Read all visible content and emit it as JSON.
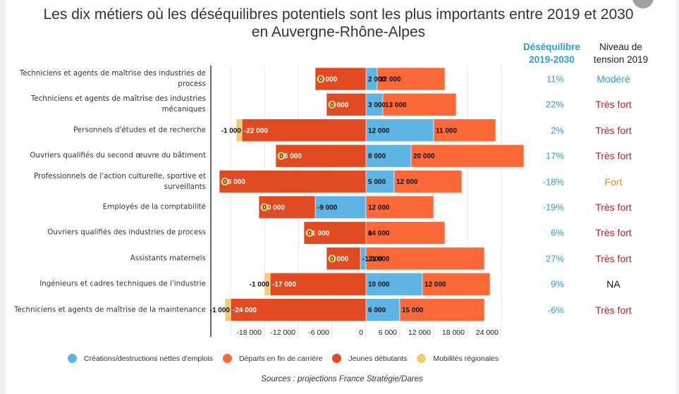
{
  "page": {
    "colors": {
      "creations": "#5eb4e3",
      "departs": "#fd6838",
      "jeunes": "#e24a22",
      "mobilites": "#f0ce70",
      "modere": "#2a9fd8",
      "tres_fort": "#cc1b1b",
      "fort": "#f08a1a",
      "na": "#111111"
    }
  },
  "columns": {
    "desequilibre_header": "Déséquilibre 2019-2030",
    "tension_header": "Niveau de tension  2019"
  },
  "chart_data": {
    "type": "bar",
    "orientation": "horizontal",
    "stacked": true,
    "title": "Les dix métiers où les déséquilibres potentiels sont les plus importants entre 2019 et 2030 en Auvergne-Rhône-Alpes",
    "xlabel": "",
    "ylabel": "",
    "xlim": [
      -24000,
      24000
    ],
    "xticks": [
      -18000,
      -12000,
      -6000,
      0,
      6000,
      12000,
      18000,
      24000
    ],
    "xtick_labels": [
      "-18 000",
      "-12 000",
      "-6 000",
      "0",
      "6 000",
      "12 000",
      "18 000",
      "24 000"
    ],
    "grid": true,
    "legend_position": "bottom",
    "categories": [
      "Techniciens et agents de maîtrise des industries de process",
      "Techniciens et agents de maîtrise des industries mécaniques",
      "Personnels d'études et de recherche",
      "Ouvriers qualifiés du second œuvre du bâtiment",
      "Professionnels de l'action culturelle, sportive et surveillants",
      "Employés de la comptabilité",
      "Ouvriers qualifiés des industries de process",
      "Assistants maternels",
      "Ingénieurs et cadres techniques de l'industrie",
      "Techniciens et agents de maîtrise de la maintenance"
    ],
    "series": [
      {
        "name": "Créations/destructions nettes d'emplois",
        "key": "creations",
        "values": [
          2000,
          3000,
          12000,
          8000,
          5000,
          -9000,
          0,
          -1000,
          10000,
          6000
        ],
        "labels": [
          "2 000",
          "3 000",
          "12 000",
          "8 000",
          "5 000",
          "-9 000",
          "0",
          "-1 000",
          "10 000",
          "6 000"
        ]
      },
      {
        "name": "Départs en fin de carrière",
        "key": "departs",
        "values": [
          12000,
          13000,
          11000,
          20000,
          12000,
          12000,
          14000,
          21000,
          12000,
          15000
        ],
        "labels": [
          "12 000",
          "13 000",
          "11 000",
          "20 000",
          "12 000",
          "12 000",
          "14 000",
          "21 000",
          "12 000",
          "15 000"
        ]
      },
      {
        "name": "Jeunes débutants",
        "key": "jeunes",
        "values": [
          -9000,
          -7000,
          -22000,
          -16000,
          -26000,
          -10000,
          -11000,
          -6000,
          -17000,
          -24000
        ],
        "labels": [
          "-9 000",
          "-7 000",
          "-22 000",
          "-16 000",
          "-26 000",
          "-10 000",
          "-11 000",
          "-6 000",
          "-17 000",
          "-24 000"
        ]
      },
      {
        "name": "Mobilités régionales",
        "key": "mobilites",
        "values": [
          0,
          0,
          -1000,
          0,
          0,
          0,
          0,
          0,
          -1000,
          -1000
        ],
        "labels": [
          "0",
          "0",
          "-1 000",
          "0",
          "0",
          "0",
          "0",
          "0",
          "-1 000",
          "-1 000"
        ]
      }
    ],
    "desequilibre": [
      "11%",
      "22%",
      "2%",
      "17%",
      "-18%",
      "-19%",
      "6%",
      "27%",
      "9%",
      "-6%"
    ],
    "tension": [
      {
        "label": "Modéré",
        "level": "modere"
      },
      {
        "label": "Très fort",
        "level": "tres_fort"
      },
      {
        "label": "Très fort",
        "level": "tres_fort"
      },
      {
        "label": "Très fort",
        "level": "tres_fort"
      },
      {
        "label": "Fort",
        "level": "fort"
      },
      {
        "label": "Très fort",
        "level": "tres_fort"
      },
      {
        "label": "Très fort",
        "level": "tres_fort"
      },
      {
        "label": "Très fort",
        "level": "tres_fort"
      },
      {
        "label": "NA",
        "level": "na"
      },
      {
        "label": "Très fort",
        "level": "tres_fort"
      }
    ],
    "legend": [
      {
        "label": "Créations/destructions nettes d'emplois",
        "key": "creations"
      },
      {
        "label": "Départs en fin de carrière",
        "key": "departs"
      },
      {
        "label": "Jeunes débutants",
        "key": "jeunes"
      },
      {
        "label": "Mobilités régionales",
        "key": "mobilites"
      }
    ],
    "source": "Sources : projections France Stratégie/Dares"
  }
}
